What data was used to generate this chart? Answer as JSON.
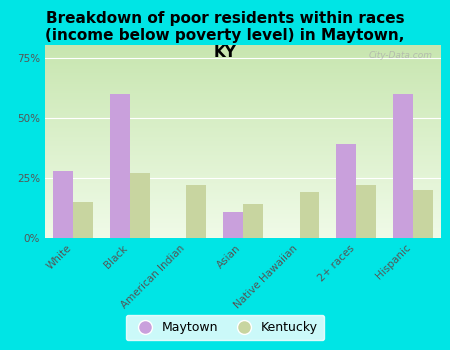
{
  "title": "Breakdown of poor residents within races\n(income below poverty level) in Maytown,\nKY",
  "categories": [
    "White",
    "Black",
    "American Indian",
    "Asian",
    "Native Hawaiian",
    "2+ races",
    "Hispanic"
  ],
  "maytown_values": [
    28,
    60,
    0,
    11,
    0,
    39,
    60
  ],
  "kentucky_values": [
    15,
    27,
    22,
    14,
    19,
    22,
    20
  ],
  "maytown_color": "#c9a0dc",
  "kentucky_color": "#c8d5a0",
  "bg_color": "#00e5e5",
  "ylim": [
    0,
    80
  ],
  "yticks": [
    0,
    25,
    50,
    75
  ],
  "ytick_labels": [
    "0%",
    "25%",
    "50%",
    "75%"
  ],
  "watermark": "City-Data.com",
  "legend_maytown": "Maytown",
  "legend_kentucky": "Kentucky",
  "title_fontsize": 11,
  "tick_fontsize": 7.5,
  "bar_width": 0.35
}
